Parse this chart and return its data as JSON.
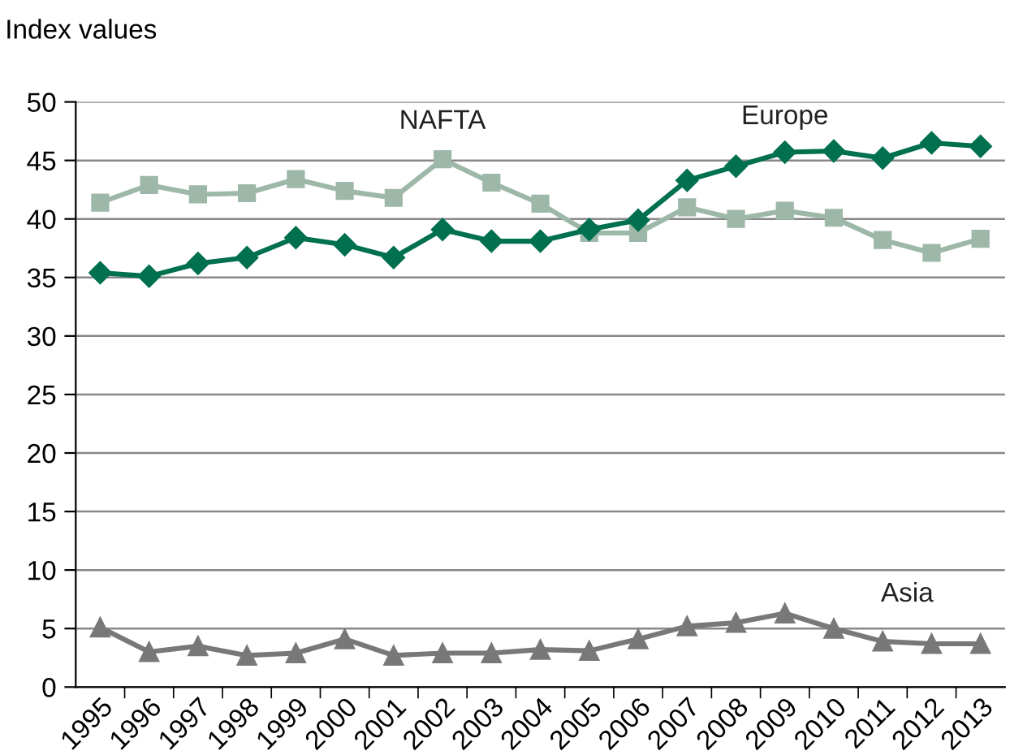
{
  "chart_data": {
    "type": "line",
    "ylabel": "Index values",
    "categories": [
      "1995",
      "1996",
      "1997",
      "1998",
      "1999",
      "2000",
      "2001",
      "2002",
      "2003",
      "2004",
      "2005",
      "2006",
      "2007",
      "2008",
      "2009",
      "2010",
      "2011",
      "2012",
      "2013"
    ],
    "series": [
      {
        "name": "Europe",
        "color": "#00704f",
        "marker": "diamond",
        "values": [
          35.4,
          35.1,
          36.2,
          36.7,
          38.4,
          37.8,
          36.7,
          39.1,
          38.1,
          38.1,
          39.1,
          39.9,
          43.3,
          44.5,
          45.7,
          45.8,
          45.2,
          46.5,
          46.2
        ]
      },
      {
        "name": "NAFTA",
        "color": "#9db8a8",
        "marker": "square",
        "values": [
          41.4,
          42.9,
          42.1,
          42.2,
          43.4,
          42.4,
          41.8,
          45.1,
          43.1,
          41.3,
          38.8,
          38.8,
          41.0,
          40.0,
          40.7,
          40.1,
          38.2,
          37.1,
          38.3
        ]
      },
      {
        "name": "Asia",
        "color": "#787878",
        "marker": "triangle",
        "values": [
          5.1,
          3.0,
          3.5,
          2.7,
          2.9,
          4.1,
          2.7,
          2.9,
          2.9,
          3.2,
          3.1,
          4.1,
          5.2,
          5.5,
          6.3,
          5.0,
          3.9,
          3.7,
          3.7
        ]
      }
    ],
    "ylim": [
      0,
      50
    ],
    "yticks": [
      0,
      5,
      10,
      15,
      20,
      25,
      30,
      35,
      40,
      45,
      50
    ],
    "grid": "y",
    "legend": false,
    "line_style": "solid"
  }
}
